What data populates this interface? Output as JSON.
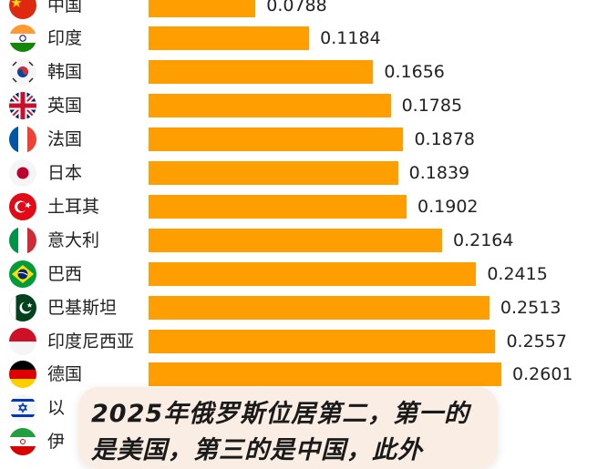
{
  "chart_data": {
    "type": "bar",
    "orientation": "horizontal",
    "categories": [
      "中国",
      "印度",
      "韩国",
      "英国",
      "法国",
      "日本",
      "土耳其",
      "意大利",
      "巴西",
      "巴基斯坦",
      "印度尼西亚",
      "德国",
      "以",
      "伊"
    ],
    "values": [
      0.0788,
      0.1184,
      0.1656,
      0.1785,
      0.1878,
      0.1839,
      0.1902,
      0.2164,
      0.2415,
      0.2513,
      0.2557,
      0.2601,
      null,
      null
    ],
    "value_labels": [
      "0.0788",
      "0.1184",
      "0.1656",
      "0.1785",
      "0.1878",
      "0.1839",
      "0.1902",
      "0.2164",
      "0.2415",
      "0.2513",
      "0.2557",
      "0.2601",
      "",
      ""
    ],
    "flags": [
      "china-flag-icon",
      "india-flag-icon",
      "south-korea-flag-icon",
      "uk-flag-icon",
      "france-flag-icon",
      "japan-flag-icon",
      "turkey-flag-icon",
      "italy-flag-icon",
      "brazil-flag-icon",
      "pakistan-flag-icon",
      "indonesia-flag-icon",
      "germany-flag-icon",
      "israel-flag-icon",
      "iran-flag-icon"
    ],
    "bar_color": "#FF9E00"
  },
  "caption": {
    "text": "2025年俄罗斯位居第二，第一的是美国，第三的是中国，此外"
  }
}
